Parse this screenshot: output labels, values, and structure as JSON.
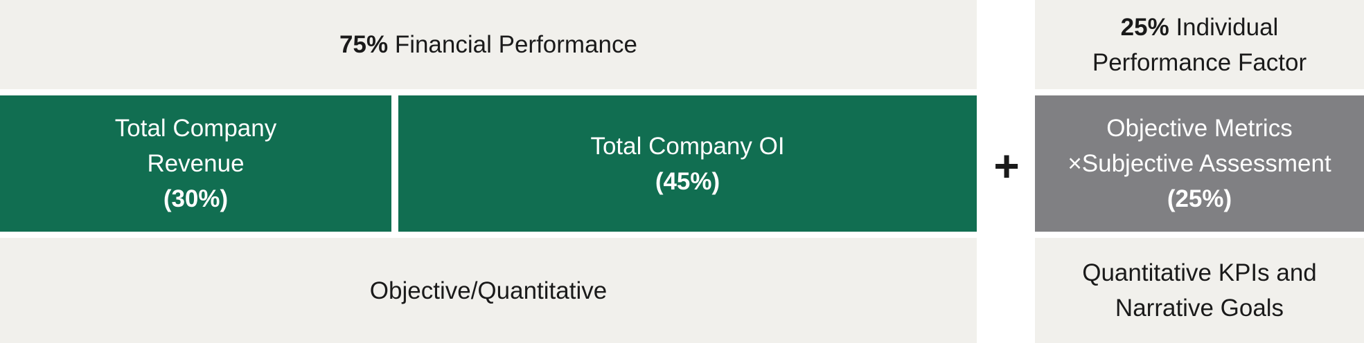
{
  "left": {
    "header": {
      "bold": "75%",
      "text": "Financial Performance"
    },
    "boxes": [
      {
        "lines": [
          "Total Company",
          "Revenue"
        ],
        "weight": "(30%)"
      },
      {
        "lines": [
          "Total Company OI"
        ],
        "weight": "(45%)"
      }
    ],
    "footer": "Objective/Quantitative"
  },
  "operator": "+",
  "right": {
    "header": {
      "bold": "25%",
      "text": "Individual",
      "line2": "Performance Factor"
    },
    "box": {
      "lines": [
        "Objective Metrics",
        "×Subjective Assessment"
      ],
      "weight": "(25%)"
    },
    "footer": [
      "Quantitative KPIs and",
      "Narrative Goals"
    ]
  }
}
